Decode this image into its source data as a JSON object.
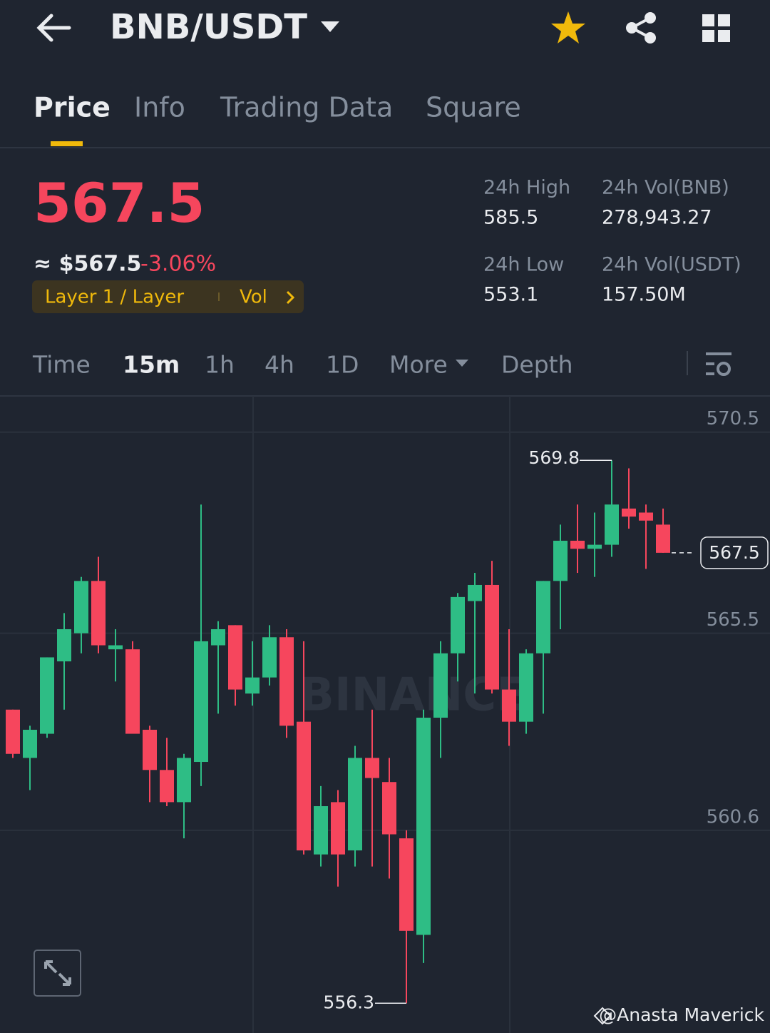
{
  "header": {
    "pair": "BNB/USDT"
  },
  "tabs": [
    "Price",
    "Info",
    "Trading Data",
    "Square"
  ],
  "ticker": {
    "price": "567.5",
    "approx": "≈ $567.5",
    "change": "-3.06%",
    "tag": "Layer 1 / Layer",
    "vol": "Vol"
  },
  "stats": [
    {
      "label": "24h High",
      "value": "585.5"
    },
    {
      "label": "24h Vol(BNB)",
      "value": "278,943.27"
    },
    {
      "label": "24h Low",
      "value": "553.1"
    },
    {
      "label": "24h Vol(USDT)",
      "value": "157.50M"
    }
  ],
  "intervals": [
    "Time",
    "15m",
    "1h",
    "4h",
    "1D",
    "More",
    "Depth"
  ],
  "watermark": "@Anasta Maverick",
  "brand": "BINANCE",
  "chart_data": {
    "type": "candlestick",
    "up_color": "#2ebd85",
    "down_color": "#f6465d",
    "ylim": [
      555.56,
      571.4
    ],
    "yticks": [
      570.5,
      565.5,
      560.6
    ],
    "grid": true,
    "open": [
      563.6,
      562.4,
      563.0,
      564.8,
      565.5,
      566.8,
      565.1,
      565.1,
      563.1,
      562.1,
      561.3,
      562.3,
      565.2,
      565.7,
      564.0,
      564.4,
      565.4,
      563.3,
      560.0,
      561.3,
      560.1,
      562.4,
      561.8,
      560.4,
      558.0,
      563.4,
      565.0,
      566.3,
      566.7,
      564.1,
      563.3,
      565.0,
      566.8,
      567.8,
      567.6,
      567.7,
      568.6,
      568.5,
      568.2
    ],
    "high": [
      563.6,
      563.2,
      564.9,
      566.0,
      566.9,
      567.4,
      565.6,
      565.3,
      563.2,
      562.9,
      562.5,
      568.7,
      565.8,
      565.7,
      565.3,
      565.7,
      565.6,
      565.3,
      561.7,
      561.6,
      562.7,
      563.6,
      562.4,
      560.6,
      563.6,
      565.3,
      566.5,
      567.0,
      567.3,
      565.6,
      565.1,
      566.8,
      568.2,
      568.7,
      568.5,
      569.8,
      569.6,
      568.7,
      568.6
    ],
    "low": [
      562.4,
      561.6,
      562.9,
      563.6,
      565.0,
      565.0,
      564.3,
      563.0,
      561.3,
      561.2,
      560.4,
      561.7,
      563.5,
      563.7,
      563.7,
      564.2,
      562.9,
      560.0,
      559.7,
      559.2,
      559.7,
      559.7,
      559.4,
      556.3,
      557.3,
      562.4,
      564.3,
      564.0,
      564.0,
      562.7,
      563.0,
      563.5,
      565.6,
      567.0,
      566.9,
      567.4,
      568.1,
      567.1,
      567.5
    ],
    "close": [
      562.5,
      563.1,
      564.9,
      565.6,
      566.8,
      565.2,
      565.2,
      563.0,
      562.1,
      561.3,
      562.4,
      565.3,
      565.6,
      564.1,
      564.4,
      565.4,
      563.2,
      560.1,
      561.2,
      560.0,
      562.4,
      561.9,
      560.5,
      558.1,
      563.4,
      565.0,
      566.4,
      566.7,
      564.1,
      563.3,
      565.0,
      566.8,
      567.8,
      567.6,
      567.7,
      568.7,
      568.4,
      568.3,
      567.5
    ]
  }
}
